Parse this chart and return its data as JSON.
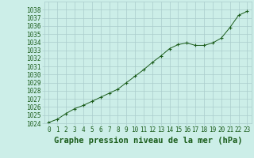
{
  "x": [
    0,
    1,
    2,
    3,
    4,
    5,
    6,
    7,
    8,
    9,
    10,
    11,
    12,
    13,
    14,
    15,
    16,
    17,
    18,
    19,
    20,
    21,
    22,
    23
  ],
  "y": [
    1024.1,
    1024.5,
    1025.2,
    1025.8,
    1026.2,
    1026.7,
    1027.2,
    1027.7,
    1028.2,
    1029.0,
    1029.8,
    1030.6,
    1031.5,
    1032.3,
    1033.2,
    1033.7,
    1033.9,
    1033.6,
    1033.6,
    1033.9,
    1034.5,
    1035.8,
    1037.3,
    1037.8
  ],
  "ylim_min": 1024,
  "ylim_max": 1039,
  "yticks": [
    1024,
    1025,
    1026,
    1027,
    1028,
    1029,
    1030,
    1031,
    1032,
    1033,
    1034,
    1035,
    1036,
    1037,
    1038
  ],
  "xlim_min": -0.5,
  "xlim_max": 23.5,
  "xticks": [
    0,
    1,
    2,
    3,
    4,
    5,
    6,
    7,
    8,
    9,
    10,
    11,
    12,
    13,
    14,
    15,
    16,
    17,
    18,
    19,
    20,
    21,
    22,
    23
  ],
  "line_color": "#1a5c1a",
  "marker": "+",
  "marker_size": 3.5,
  "bg_color": "#cceee8",
  "grid_color": "#aacccc",
  "xlabel": "Graphe pression niveau de la mer (hPa)",
  "xlabel_color": "#1a5c1a",
  "tick_color": "#1a5c1a",
  "tick_fontsize": 5.5,
  "xlabel_fontsize": 7.5
}
